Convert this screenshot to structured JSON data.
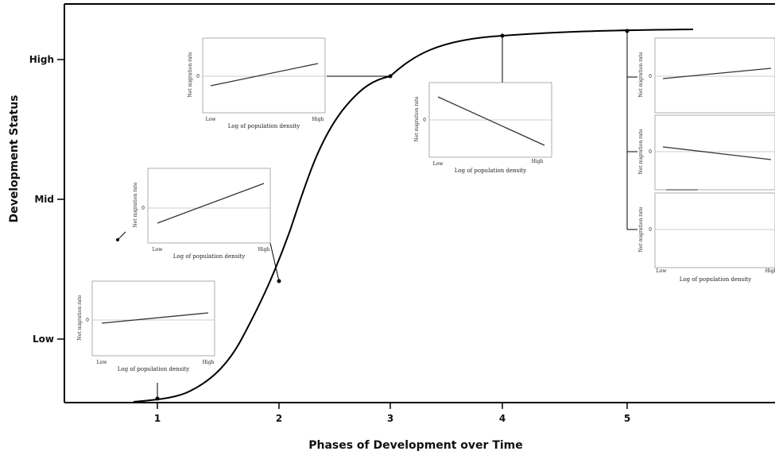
{
  "axes": {
    "x_title": "Phases of Development over Time",
    "y_title": "Development Status",
    "x_ticks": [
      "1",
      "2",
      "3",
      "4",
      "5"
    ],
    "y_ticks": [
      "Low",
      "Mid",
      "High"
    ]
  },
  "inset": {
    "ylabel": "Net migration rate",
    "xlabel": "Log of population density",
    "x_low": "Low",
    "x_high": "High",
    "zero": "0"
  },
  "phases": [
    {
      "phase": "1",
      "relationship": "weak positive"
    },
    {
      "phase": "2",
      "relationship": "strong positive"
    },
    {
      "phase": "3",
      "relationship": "positive"
    },
    {
      "phase": "4",
      "relationship": "negative"
    },
    {
      "phase": "5",
      "relationship": [
        "weak positive",
        "weak negative",
        "flat"
      ]
    }
  ],
  "colors": {
    "line": "#111111",
    "zero_line": "#bbbbbb",
    "frame": "#999999"
  }
}
